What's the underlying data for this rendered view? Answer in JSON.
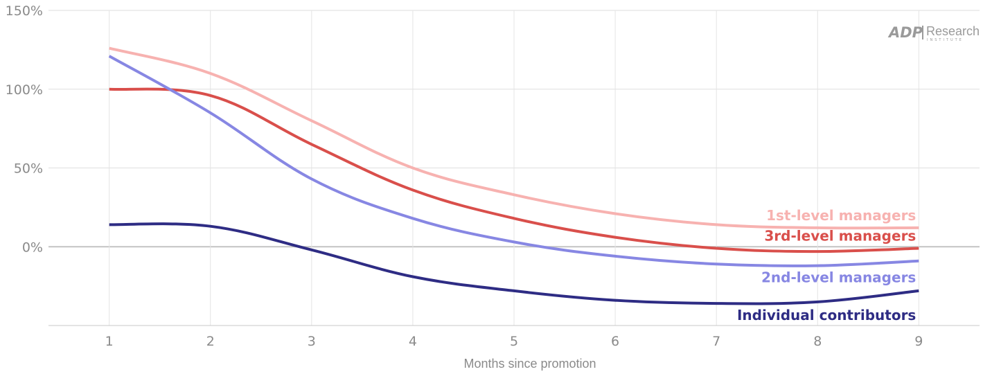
{
  "logo": {
    "brand": "ADP",
    "name": "Research",
    "subtitle": "INSTITUTE"
  },
  "chart_data": {
    "type": "line",
    "title": "",
    "xlabel": "Months since promotion",
    "ylabel": "",
    "x": [
      1,
      2,
      3,
      4,
      5,
      6,
      7,
      8,
      9
    ],
    "xlim": [
      0.4,
      9.6
    ],
    "ylim": [
      -50,
      150
    ],
    "yticks": [
      0,
      50,
      100,
      150
    ],
    "ytick_labels": [
      "0%",
      "50%",
      "100%",
      "150%"
    ],
    "xtick_labels": [
      "1",
      "2",
      "3",
      "4",
      "5",
      "6",
      "7",
      "8",
      "9"
    ],
    "grid": true,
    "legend": "direct labels at line ends (right)",
    "series": [
      {
        "name": "1st-level managers",
        "color": "#f7b2b0",
        "values": [
          126,
          110,
          80,
          50,
          33,
          21,
          14,
          12,
          12
        ]
      },
      {
        "name": "3rd-level managers",
        "color": "#d94f4b",
        "values": [
          100,
          96,
          65,
          36,
          18,
          6,
          -1,
          -3,
          -1
        ]
      },
      {
        "name": "2nd-level managers",
        "color": "#8787e3",
        "values": [
          121,
          85,
          43,
          18,
          3,
          -6,
          -11,
          -12,
          -9
        ]
      },
      {
        "name": "Individual contributors",
        "color": "#2e2c84",
        "values": [
          14,
          13,
          -2,
          -19,
          -28,
          -34,
          -36,
          -35,
          -28
        ]
      }
    ]
  }
}
